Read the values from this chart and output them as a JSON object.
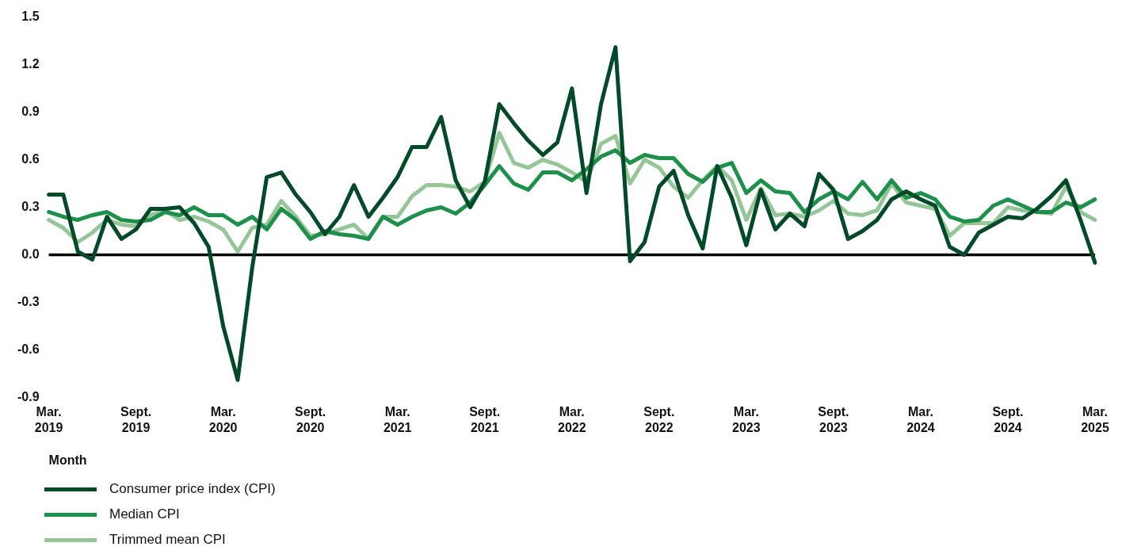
{
  "chart_data": {
    "type": "line",
    "xlabel": "Month",
    "categories": [
      "Mar. 2019",
      null,
      null,
      null,
      null,
      null,
      "Sept. 2019",
      null,
      null,
      null,
      null,
      null,
      "Mar. 2020",
      null,
      null,
      null,
      null,
      null,
      "Sept. 2020",
      null,
      null,
      null,
      null,
      null,
      "Mar. 2021",
      null,
      null,
      null,
      null,
      null,
      "Sept. 2021",
      null,
      null,
      null,
      null,
      null,
      "Mar. 2022",
      null,
      null,
      null,
      null,
      null,
      "Sept. 2022",
      null,
      null,
      null,
      null,
      null,
      "Mar. 2023",
      null,
      null,
      null,
      null,
      null,
      "Sept. 2023",
      null,
      null,
      null,
      null,
      null,
      "Mar. 2024",
      null,
      null,
      null,
      null,
      null,
      "Sept. 2024",
      null,
      null,
      null,
      null,
      null,
      "Mar. 2025"
    ],
    "series": [
      {
        "name": "Consumer price index (CPI)",
        "color": "#004a2a",
        "values": [
          0.38,
          0.38,
          0.02,
          -0.03,
          0.24,
          0.1,
          0.16,
          0.29,
          0.29,
          0.3,
          0.2,
          0.05,
          -0.45,
          -0.79,
          -0.08,
          0.49,
          0.52,
          0.38,
          0.27,
          0.13,
          0.24,
          0.44,
          0.24,
          0.36,
          0.49,
          0.68,
          0.68,
          0.87,
          0.47,
          0.3,
          0.46,
          0.95,
          0.83,
          0.72,
          0.63,
          0.71,
          1.05,
          0.39,
          0.95,
          1.31,
          -0.04,
          0.08,
          0.43,
          0.53,
          0.25,
          0.04,
          0.56,
          0.36,
          0.06,
          0.41,
          0.16,
          0.26,
          0.18,
          0.51,
          0.41,
          0.1,
          0.15,
          0.22,
          0.35,
          0.4,
          0.35,
          0.31,
          0.05,
          0.0,
          0.14,
          0.19,
          0.24,
          0.23,
          0.29,
          0.37,
          0.47,
          0.22,
          -0.05
        ]
      },
      {
        "name": "Median CPI",
        "color": "#1f8f4c",
        "values": [
          0.27,
          0.24,
          0.22,
          0.25,
          0.27,
          0.22,
          0.21,
          0.22,
          0.27,
          0.25,
          0.3,
          0.25,
          0.25,
          0.19,
          0.24,
          0.16,
          0.29,
          0.22,
          0.1,
          0.15,
          0.13,
          0.12,
          0.1,
          0.24,
          0.19,
          0.24,
          0.28,
          0.3,
          0.26,
          0.33,
          0.44,
          0.56,
          0.45,
          0.41,
          0.52,
          0.52,
          0.47,
          0.54,
          0.62,
          0.66,
          0.58,
          0.63,
          0.61,
          0.61,
          0.51,
          0.46,
          0.55,
          0.58,
          0.39,
          0.47,
          0.4,
          0.39,
          0.27,
          0.35,
          0.4,
          0.35,
          0.46,
          0.35,
          0.47,
          0.36,
          0.39,
          0.35,
          0.24,
          0.21,
          0.22,
          0.31,
          0.35,
          0.31,
          0.27,
          0.27,
          0.33,
          0.3,
          0.35
        ]
      },
      {
        "name": "Trimmed mean CPI",
        "color": "#96c698",
        "values": [
          0.22,
          0.17,
          0.08,
          0.14,
          0.22,
          0.19,
          0.18,
          0.25,
          0.28,
          0.22,
          0.24,
          0.21,
          0.16,
          0.02,
          0.17,
          0.19,
          0.34,
          0.24,
          0.12,
          0.13,
          0.16,
          0.19,
          0.1,
          0.24,
          0.24,
          0.37,
          0.44,
          0.44,
          0.43,
          0.4,
          0.46,
          0.77,
          0.58,
          0.55,
          0.6,
          0.57,
          0.52,
          0.46,
          0.7,
          0.75,
          0.45,
          0.6,
          0.55,
          0.43,
          0.36,
          0.47,
          0.56,
          0.47,
          0.22,
          0.42,
          0.25,
          0.26,
          0.24,
          0.28,
          0.34,
          0.26,
          0.25,
          0.28,
          0.45,
          0.33,
          0.31,
          0.29,
          0.12,
          0.2,
          0.2,
          0.2,
          0.3,
          0.28,
          0.27,
          0.26,
          0.43,
          0.27,
          0.22
        ]
      }
    ],
    "ylim": [
      -0.9,
      1.5
    ],
    "yticks": [
      1.5,
      1.2,
      0.9,
      0.6,
      0.3,
      {
        "value": 0,
        "label": "0.0"
      },
      -0.3,
      -0.6,
      -0.9
    ],
    "ref_lines": [
      {
        "axis": "y",
        "value": 0,
        "color": "#000000"
      }
    ],
    "grid": false,
    "legend": "bottom",
    "marker": "none",
    "line_style": "solid"
  }
}
